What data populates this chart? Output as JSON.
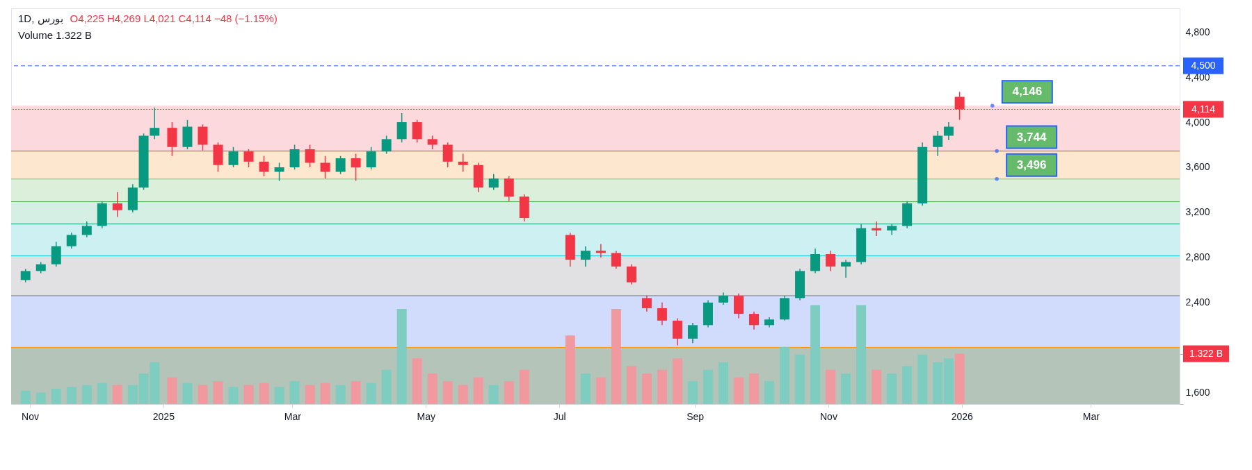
{
  "chart_data": {
    "type": "candlestick",
    "title": "1D, بورس",
    "subtitle": "O4,225 H4,269 L4,021 C4,114 −48 (−1.15%)",
    "annotations": [
      "Volume 1.322 B",
      {
        "text": "4,146",
        "x": "2026-01-15",
        "y": 4146
      },
      {
        "text": "3,744",
        "x": "2026-01-17",
        "y": 3744
      },
      {
        "text": "3,496",
        "x": "2026-01-17",
        "y": 3496
      }
    ],
    "x": [
      "2024-10-30",
      "2024-11-06",
      "2024-11-13",
      "2024-11-20",
      "2024-11-27",
      "2024-12-04",
      "2024-12-11",
      "2024-12-18",
      "2024-12-23",
      "2024-12-28",
      "2025-01-05",
      "2025-01-12",
      "2025-01-19",
      "2025-01-26",
      "2025-02-02",
      "2025-02-09",
      "2025-02-16",
      "2025-02-23",
      "2025-03-02",
      "2025-03-09",
      "2025-03-16",
      "2025-03-23",
      "2025-03-30",
      "2025-04-06",
      "2025-04-13",
      "2025-04-20",
      "2025-04-27",
      "2025-05-04",
      "2025-05-11",
      "2025-05-18",
      "2025-05-25",
      "2025-06-01",
      "2025-06-08",
      "2025-06-15",
      "2025-07-06",
      "2025-07-13",
      "2025-07-20",
      "2025-07-27",
      "2025-08-03",
      "2025-08-10",
      "2025-08-17",
      "2025-08-24",
      "2025-08-31",
      "2025-09-07",
      "2025-09-14",
      "2025-09-21",
      "2025-09-28",
      "2025-10-05",
      "2025-10-12",
      "2025-10-19",
      "2025-10-26",
      "2025-11-02",
      "2025-11-09",
      "2025-11-16",
      "2025-11-23",
      "2025-11-30",
      "2025-12-07",
      "2025-12-14",
      "2025-12-21",
      "2025-12-26",
      "2025-12-31"
    ],
    "ohlc": [
      [
        2600,
        2700,
        2580,
        2680
      ],
      [
        2680,
        2760,
        2660,
        2740
      ],
      [
        2740,
        2940,
        2720,
        2900
      ],
      [
        2900,
        3020,
        2880,
        3000
      ],
      [
        3000,
        3120,
        2980,
        3080
      ],
      [
        3080,
        3300,
        3060,
        3280
      ],
      [
        3280,
        3380,
        3160,
        3220
      ],
      [
        3220,
        3450,
        3200,
        3420
      ],
      [
        3420,
        3900,
        3400,
        3880
      ],
      [
        3880,
        4130,
        3850,
        3950
      ],
      [
        3950,
        4000,
        3700,
        3780
      ],
      [
        3780,
        4020,
        3760,
        3960
      ],
      [
        3960,
        3980,
        3750,
        3800
      ],
      [
        3800,
        3820,
        3560,
        3620
      ],
      [
        3620,
        3780,
        3600,
        3740
      ],
      [
        3740,
        3760,
        3600,
        3650
      ],
      [
        3650,
        3700,
        3520,
        3560
      ],
      [
        3560,
        3640,
        3480,
        3600
      ],
      [
        3600,
        3800,
        3580,
        3760
      ],
      [
        3760,
        3800,
        3600,
        3640
      ],
      [
        3640,
        3700,
        3500,
        3560
      ],
      [
        3560,
        3700,
        3540,
        3680
      ],
      [
        3680,
        3720,
        3480,
        3600
      ],
      [
        3600,
        3780,
        3580,
        3740
      ],
      [
        3740,
        3880,
        3720,
        3850
      ],
      [
        3850,
        4080,
        3820,
        4000
      ],
      [
        4000,
        4020,
        3820,
        3850
      ],
      [
        3850,
        3880,
        3760,
        3800
      ],
      [
        3800,
        3820,
        3600,
        3650
      ],
      [
        3650,
        3720,
        3560,
        3620
      ],
      [
        3620,
        3640,
        3380,
        3420
      ],
      [
        3420,
        3540,
        3400,
        3500
      ],
      [
        3500,
        3520,
        3300,
        3340
      ],
      [
        3340,
        3360,
        3120,
        3150
      ],
      [
        3000,
        3020,
        2720,
        2780
      ],
      [
        2780,
        2900,
        2720,
        2860
      ],
      [
        2860,
        2920,
        2800,
        2840
      ],
      [
        2840,
        2860,
        2700,
        2720
      ],
      [
        2720,
        2740,
        2560,
        2580
      ],
      [
        2440,
        2460,
        2320,
        2350
      ],
      [
        2350,
        2400,
        2200,
        2240
      ],
      [
        2240,
        2260,
        2020,
        2080
      ],
      [
        2080,
        2220,
        2040,
        2200
      ],
      [
        2200,
        2420,
        2180,
        2400
      ],
      [
        2400,
        2490,
        2380,
        2460
      ],
      [
        2460,
        2480,
        2260,
        2300
      ],
      [
        2300,
        2320,
        2160,
        2200
      ],
      [
        2200,
        2270,
        2180,
        2250
      ],
      [
        2250,
        2460,
        2240,
        2440
      ],
      [
        2440,
        2700,
        2420,
        2680
      ],
      [
        2680,
        2880,
        2660,
        2830
      ],
      [
        2830,
        2860,
        2680,
        2720
      ],
      [
        2720,
        2780,
        2620,
        2760
      ],
      [
        2760,
        3100,
        2740,
        3060
      ],
      [
        3060,
        3120,
        2990,
        3040
      ],
      [
        3040,
        3100,
        3000,
        3080
      ],
      [
        3080,
        3300,
        3060,
        3280
      ],
      [
        3280,
        3820,
        3260,
        3780
      ],
      [
        3780,
        3920,
        3700,
        3880
      ],
      [
        3880,
        4000,
        3840,
        3960
      ],
      [
        4225,
        4269,
        4021,
        4114
      ]
    ],
    "colors": [
      "#089981",
      "#089981",
      "#089981",
      "#089981",
      "#089981",
      "#089981",
      "#f23645",
      "#089981",
      "#089981",
      "#089981",
      "#f23645",
      "#089981",
      "#f23645",
      "#f23645",
      "#089981",
      "#f23645",
      "#f23645",
      "#089981",
      "#089981",
      "#f23645",
      "#f23645",
      "#089981",
      "#f23645",
      "#089981",
      "#089981",
      "#089981",
      "#f23645",
      "#f23645",
      "#f23645",
      "#f23645",
      "#f23645",
      "#089981",
      "#f23645",
      "#f23645",
      "#f23645",
      "#089981",
      "#f23645",
      "#f23645",
      "#f23645",
      "#f23645",
      "#f23645",
      "#f23645",
      "#089981",
      "#089981",
      "#089981",
      "#f23645",
      "#f23645",
      "#089981",
      "#089981",
      "#089981",
      "#089981",
      "#f23645",
      "#089981",
      "#089981",
      "#f23645",
      "#089981",
      "#089981",
      "#089981",
      "#089981",
      "#089981",
      "#f23645"
    ],
    "series": [
      {
        "type": "bar",
        "axis": "y2",
        "values": [
          0.35,
          0.3,
          0.4,
          0.45,
          0.5,
          0.55,
          0.5,
          0.5,
          0.8,
          1.1,
          0.7,
          0.55,
          0.5,
          0.6,
          0.45,
          0.5,
          0.55,
          0.45,
          0.6,
          0.5,
          0.55,
          0.5,
          0.6,
          0.55,
          0.9,
          2.5,
          1.2,
          0.8,
          0.6,
          0.5,
          0.7,
          0.5,
          0.6,
          0.9,
          1.8,
          0.8,
          0.7,
          2.5,
          1.0,
          0.8,
          0.9,
          1.2,
          0.6,
          0.9,
          1.1,
          0.7,
          0.8,
          0.6,
          1.5,
          1.3,
          2.6,
          0.9,
          0.8,
          2.6,
          0.9,
          0.8,
          1.0,
          1.3,
          1.1,
          1.2,
          1.322
        ],
        "colors": [
          "#7fccc0",
          "#7fccc0",
          "#7fccc0",
          "#7fccc0",
          "#7fccc0",
          "#7fccc0",
          "#f09a9f",
          "#7fccc0",
          "#7fccc0",
          "#7fccc0",
          "#f09a9f",
          "#7fccc0",
          "#f09a9f",
          "#f09a9f",
          "#7fccc0",
          "#f09a9f",
          "#f09a9f",
          "#7fccc0",
          "#7fccc0",
          "#f09a9f",
          "#f09a9f",
          "#7fccc0",
          "#f09a9f",
          "#7fccc0",
          "#7fccc0",
          "#7fccc0",
          "#f09a9f",
          "#f09a9f",
          "#f09a9f",
          "#f09a9f",
          "#f09a9f",
          "#7fccc0",
          "#f09a9f",
          "#f09a9f",
          "#f09a9f",
          "#7fccc0",
          "#f09a9f",
          "#f09a9f",
          "#f09a9f",
          "#f09a9f",
          "#f09a9f",
          "#f09a9f",
          "#7fccc0",
          "#7fccc0",
          "#7fccc0",
          "#f09a9f",
          "#f09a9f",
          "#7fccc0",
          "#7fccc0",
          "#7fccc0",
          "#7fccc0",
          "#f09a9f",
          "#7fccc0",
          "#7fccc0",
          "#f09a9f",
          "#7fccc0",
          "#7fccc0",
          "#7fccc0",
          "#7fccc0",
          "#7fccc0",
          "#f09a9f"
        ]
      }
    ],
    "xlim": [
      "2024-10-25",
      "2026-04-09"
    ],
    "xticks": [
      {
        "value": "2024-11-01",
        "label": "Nov"
      },
      {
        "value": "2025-01-01",
        "label": "2025"
      },
      {
        "value": "2025-03-01",
        "label": "Mar"
      },
      {
        "value": "2025-05-01",
        "label": "May"
      },
      {
        "value": "2025-07-01",
        "label": "Jul"
      },
      {
        "value": "2025-09-01",
        "label": "Sep"
      },
      {
        "value": "2025-11-01",
        "label": "Nov"
      },
      {
        "value": "2026-01-01",
        "label": "2026"
      },
      {
        "value": "2026-03-01",
        "label": "Mar"
      }
    ],
    "ylim": [
      1500,
      5010
    ],
    "yticks": [
      {
        "value": 1600,
        "label": "1,600"
      },
      {
        "value": 2400,
        "label": "2,400"
      },
      {
        "value": 2800,
        "label": "2,800"
      },
      {
        "value": 3200,
        "label": "3,200"
      },
      {
        "value": 3600,
        "label": "3,600"
      },
      {
        "value": 4000,
        "label": "4,000"
      },
      {
        "value": 4400,
        "label": "4,400"
      },
      {
        "value": 4800,
        "label": "4,800"
      }
    ],
    "y2lim": [
      0,
      10.4
    ],
    "y2ticks": [
      {
        "value": 0,
        "label": null
      },
      {
        "value": 1.322,
        "label": "1.322 B"
      }
    ],
    "bands": [
      {
        "axis": "y",
        "from": 3744,
        "to": 4146,
        "color": "#fbd9dc"
      },
      {
        "axis": "y",
        "from": 3496,
        "to": 3744,
        "color": "#fde8cf"
      },
      {
        "axis": "y",
        "from": 3295,
        "to": 3496,
        "color": "#dcefdb"
      },
      {
        "axis": "y",
        "from": 3097,
        "to": 3295,
        "color": "#d6efe4"
      },
      {
        "axis": "y",
        "from": 2814,
        "to": 3097,
        "color": "#cdf0f2"
      },
      {
        "axis": "y",
        "from": 2461,
        "to": 2814,
        "color": "#e1e1e3"
      },
      {
        "axis": "y",
        "from": 2002,
        "to": 2461,
        "color": "#d1dcfd"
      },
      {
        "axis": "y",
        "from": 1500,
        "to": 2002,
        "color": "#b4c4b8"
      }
    ],
    "ref_lines": [
      {
        "axis": "y",
        "value": 4500,
        "label": "4,500",
        "color": "#2962ff",
        "line_style": "dashed"
      },
      {
        "axis": "y",
        "value": 4114,
        "label": "4,114",
        "color": "#f23645",
        "line_style": "dotted"
      },
      {
        "axis": "y",
        "value": 3744,
        "color": "#f23645"
      },
      {
        "axis": "y",
        "value": 3496,
        "color": "#81c784"
      },
      {
        "axis": "y",
        "value": 3295,
        "color": "#4caf50"
      },
      {
        "axis": "y",
        "value": 3097,
        "color": "#089981"
      },
      {
        "axis": "y",
        "value": 2814,
        "color": "#00bcd4"
      },
      {
        "axis": "y",
        "value": 2461,
        "color": "#787b86"
      },
      {
        "axis": "y",
        "value": 2002,
        "color": "#ff9800"
      }
    ],
    "grid": false
  }
}
